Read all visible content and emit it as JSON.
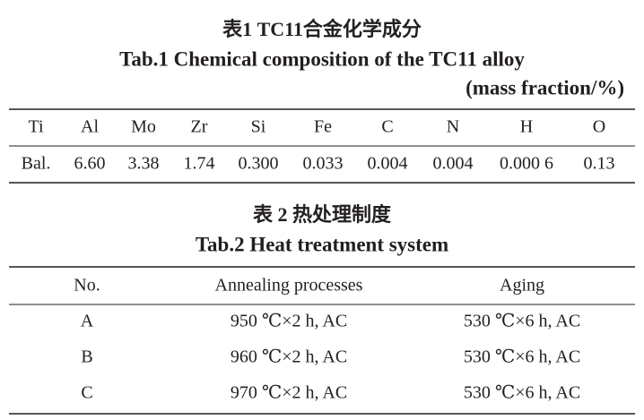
{
  "table1": {
    "title_cn": "表1 TC11合金化学成分",
    "title_en": "Tab.1 Chemical composition of the TC11 alloy",
    "unit": "(mass fraction/%)",
    "header": [
      "Ti",
      "Al",
      "Mo",
      "Zr",
      "Si",
      "Fe",
      "C",
      "N",
      "H",
      "O"
    ],
    "rows": [
      [
        "Bal.",
        "6.60",
        "3.38",
        "1.74",
        "0.300",
        "0.033",
        "0.004",
        "0.004",
        "0.000 6",
        "0.13"
      ]
    ]
  },
  "table2": {
    "title_cn": "表 2 热处理制度",
    "title_en": "Tab.2 Heat treatment system",
    "header": [
      "No.",
      "Annealing processes",
      "Aging"
    ],
    "rows": [
      [
        "A",
        "950 ℃×2 h, AC",
        "530 ℃×6 h, AC"
      ],
      [
        "B",
        "960 ℃×2 h, AC",
        "530 ℃×6 h, AC"
      ],
      [
        "C",
        "970 ℃×2 h, AC",
        "530 ℃×6 h, AC"
      ]
    ]
  }
}
